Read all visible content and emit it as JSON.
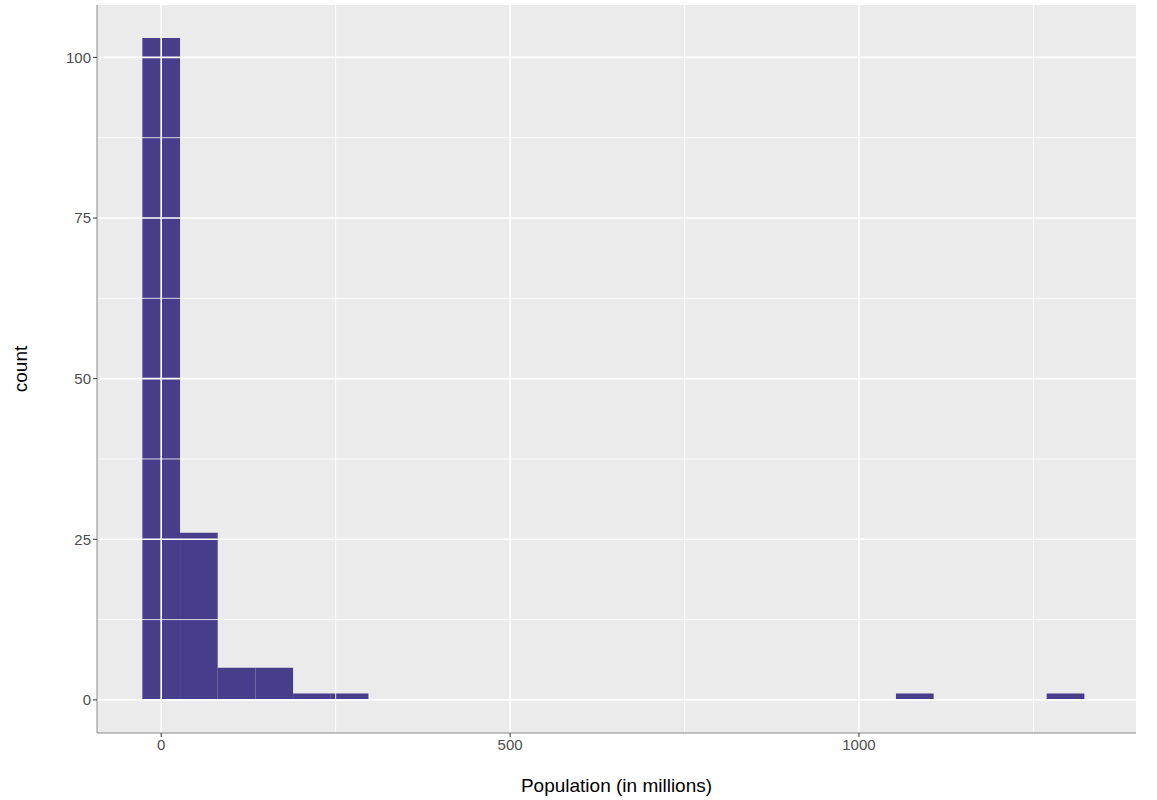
{
  "chart_data": {
    "type": "histogram",
    "x_label": "Population (in millions)",
    "y_label": "count",
    "bins": [
      -27,
      27,
      81,
      135,
      189,
      243,
      297,
      351,
      405,
      459,
      513,
      567,
      621,
      675,
      729,
      783,
      837,
      891,
      945,
      999,
      1053,
      1107,
      1161,
      1215,
      1269,
      1323
    ],
    "counts": [
      103,
      26,
      5,
      5,
      1,
      1,
      0,
      0,
      0,
      0,
      0,
      0,
      0,
      0,
      0,
      0,
      0,
      0,
      0,
      0,
      1,
      0,
      0,
      0,
      1
    ],
    "color": "#483D8B",
    "xlim": [
      -92,
      1397
    ],
    "ylim": [
      -5.15,
      108.15
    ],
    "xticks": [
      0,
      500,
      1000
    ],
    "yticks": [
      0,
      25,
      50,
      75,
      100
    ],
    "grid": true
  }
}
